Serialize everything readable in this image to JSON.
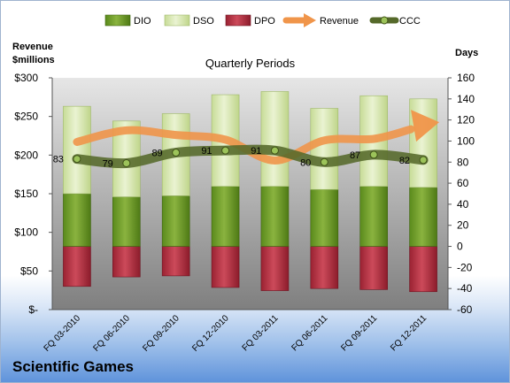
{
  "company_label": "Scientific Games",
  "chart_data": {
    "type": "bar",
    "title": "Quarterly Periods",
    "ylabel_left": "Revenue\n$millions",
    "ylabel_right": "Days",
    "categories": [
      "FQ 03-2010",
      "FQ 06-2010",
      "FQ 09-2010",
      "FQ 12-2010",
      "FQ 03-2011",
      "FQ 06-2011",
      "FQ 09-2011",
      "FQ 12-2011"
    ],
    "left_axis": {
      "ylim": [
        0,
        300
      ],
      "ticks": [
        0,
        50,
        100,
        150,
        200,
        250,
        300
      ],
      "tick_labels": [
        "$-",
        "$50",
        "$100",
        "$150",
        "$200",
        "$250",
        "$300"
      ]
    },
    "right_axis": {
      "ylim": [
        -60,
        160
      ],
      "ticks": [
        -60,
        -40,
        -20,
        0,
        20,
        40,
        60,
        80,
        100,
        120,
        140,
        160
      ],
      "tick_labels": [
        "-60",
        "-40",
        "-20",
        "0",
        "20",
        "40",
        "60",
        "80",
        "100",
        "120",
        "140",
        "160"
      ]
    },
    "series": [
      {
        "name": "DIO",
        "axis": "right",
        "kind": "stacked-bar",
        "color": "#6f9a2e",
        "values": [
          50,
          47,
          48,
          57,
          57,
          54,
          57,
          56
        ]
      },
      {
        "name": "DSO",
        "axis": "right",
        "kind": "stacked-bar",
        "color": "#d7e6b3",
        "values": [
          83,
          72,
          78,
          87,
          90,
          77,
          86,
          84
        ]
      },
      {
        "name": "DPO",
        "axis": "right",
        "kind": "negative-bar",
        "color": "#b8394a",
        "values": [
          -38,
          -29,
          -28,
          -39,
          -42,
          -40,
          -41,
          -43
        ]
      },
      {
        "name": "Revenue",
        "axis": "left",
        "kind": "line",
        "color": "#f0954a",
        "values": [
          217,
          232,
          226,
          220,
          193,
          219,
          221,
          238
        ]
      },
      {
        "name": "CCC",
        "axis": "right",
        "kind": "line",
        "color": "#5a6e2a",
        "values": [
          83,
          79,
          89,
          91,
          91,
          80,
          87,
          82
        ]
      }
    ],
    "data_labels": [
      "83",
      "79",
      "89",
      "91",
      "91",
      "80",
      "87",
      "82"
    ],
    "legend": {
      "position": "top",
      "entries": [
        "DIO",
        "DSO",
        "DPO",
        "Revenue",
        "CCC"
      ]
    },
    "grid": false
  }
}
